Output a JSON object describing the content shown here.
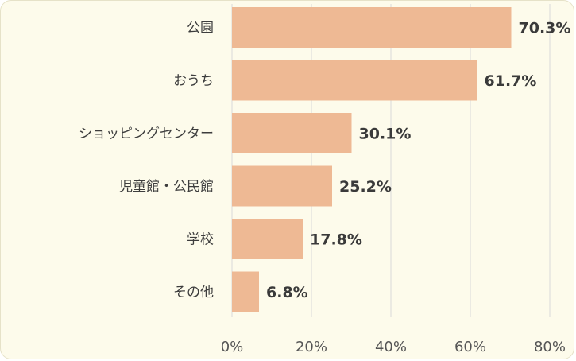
{
  "chart_data": {
    "type": "bar",
    "orientation": "horizontal",
    "categories": [
      "公園",
      "おうち",
      "ショッピングセンター",
      "児童館・公民館",
      "学校",
      "その他"
    ],
    "values": [
      70.3,
      61.7,
      30.1,
      25.2,
      17.8,
      6.8
    ],
    "value_labels": [
      "70.3%",
      "61.7%",
      "30.1%",
      "25.2%",
      "17.8%",
      "6.8%"
    ],
    "xlim": [
      0,
      80
    ],
    "x_ticks": [
      0,
      20,
      40,
      60,
      80
    ],
    "x_tick_labels": [
      "0%",
      "20%",
      "40%",
      "60%",
      "80%"
    ],
    "grid": true,
    "colors": {
      "bar": "#eeb994",
      "grid": "#d9d9d9",
      "background": "#fdfbeb"
    }
  }
}
